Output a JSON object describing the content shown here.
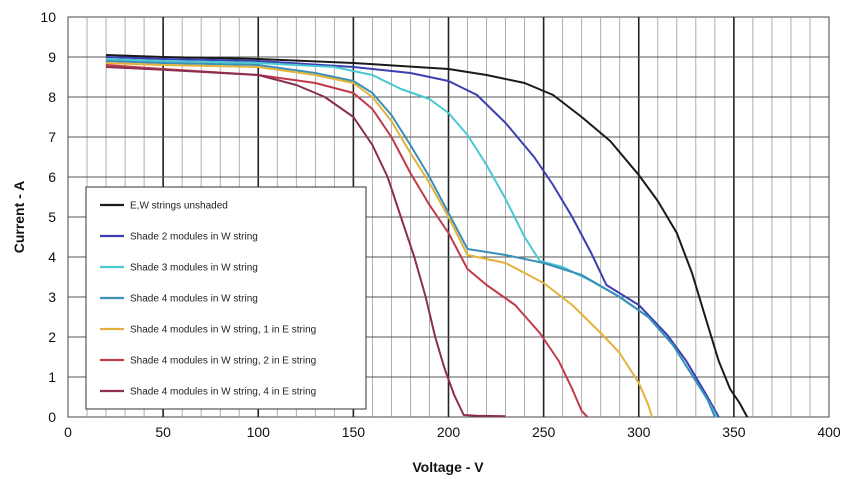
{
  "chart_data": {
    "type": "line",
    "title": "",
    "xlabel": "Voltage - V",
    "ylabel": "Current - A",
    "xlim": [
      0,
      400
    ],
    "ylim": [
      0,
      10
    ],
    "x_ticks": [
      0,
      50,
      100,
      150,
      200,
      250,
      300,
      350,
      400
    ],
    "y_ticks": [
      0,
      1,
      2,
      3,
      4,
      5,
      6,
      7,
      8,
      9,
      10
    ],
    "grid": true,
    "legend_position": "left-center",
    "series": [
      {
        "name": "E,W strings unshaded",
        "color": "#1a1a1a",
        "points": [
          [
            20,
            9.05
          ],
          [
            50,
            9.0
          ],
          [
            100,
            8.95
          ],
          [
            150,
            8.85
          ],
          [
            200,
            8.7
          ],
          [
            220,
            8.55
          ],
          [
            240,
            8.35
          ],
          [
            255,
            8.05
          ],
          [
            270,
            7.5
          ],
          [
            285,
            6.9
          ],
          [
            300,
            6.05
          ],
          [
            310,
            5.4
          ],
          [
            320,
            4.6
          ],
          [
            328,
            3.6
          ],
          [
            335,
            2.5
          ],
          [
            342,
            1.4
          ],
          [
            348,
            0.7
          ],
          [
            353,
            0.35
          ],
          [
            357,
            0.0
          ]
        ]
      },
      {
        "name": "Shade 2 modules in W string",
        "color": "#3b3fb0",
        "points": [
          [
            20,
            9.0
          ],
          [
            50,
            8.95
          ],
          [
            100,
            8.9
          ],
          [
            150,
            8.75
          ],
          [
            180,
            8.6
          ],
          [
            200,
            8.4
          ],
          [
            215,
            8.05
          ],
          [
            230,
            7.35
          ],
          [
            245,
            6.5
          ],
          [
            255,
            5.8
          ],
          [
            265,
            5.0
          ],
          [
            275,
            4.1
          ],
          [
            283,
            3.3
          ],
          [
            300,
            2.8
          ],
          [
            315,
            2.05
          ],
          [
            325,
            1.4
          ],
          [
            335,
            0.6
          ],
          [
            342,
            0.0
          ]
        ]
      },
      {
        "name": "Shade 3 modules in W string",
        "color": "#48c8d0",
        "points": [
          [
            20,
            8.95
          ],
          [
            50,
            8.9
          ],
          [
            100,
            8.85
          ],
          [
            140,
            8.75
          ],
          [
            160,
            8.55
          ],
          [
            175,
            8.2
          ],
          [
            190,
            7.95
          ],
          [
            200,
            7.6
          ],
          [
            210,
            7.05
          ],
          [
            220,
            6.3
          ],
          [
            230,
            5.45
          ],
          [
            240,
            4.5
          ],
          [
            248,
            3.9
          ],
          [
            260,
            3.75
          ],
          [
            275,
            3.4
          ],
          [
            290,
            3.0
          ],
          [
            305,
            2.5
          ],
          [
            318,
            1.8
          ],
          [
            328,
            1.05
          ],
          [
            336,
            0.45
          ],
          [
            341,
            0.0
          ]
        ]
      },
      {
        "name": "Shade 4 modules in W string",
        "color": "#3a8fb8",
        "points": [
          [
            20,
            8.9
          ],
          [
            50,
            8.85
          ],
          [
            100,
            8.8
          ],
          [
            130,
            8.6
          ],
          [
            150,
            8.4
          ],
          [
            160,
            8.1
          ],
          [
            170,
            7.55
          ],
          [
            180,
            6.8
          ],
          [
            190,
            6.0
          ],
          [
            200,
            5.1
          ],
          [
            210,
            4.2
          ],
          [
            230,
            4.05
          ],
          [
            250,
            3.85
          ],
          [
            270,
            3.55
          ],
          [
            290,
            3.0
          ],
          [
            305,
            2.5
          ],
          [
            318,
            1.8
          ],
          [
            328,
            1.05
          ],
          [
            336,
            0.45
          ],
          [
            340,
            0.0
          ]
        ]
      },
      {
        "name": "Shade 4 modules in W string, 1 in E string",
        "color": "#e3b23a",
        "points": [
          [
            20,
            8.85
          ],
          [
            50,
            8.8
          ],
          [
            100,
            8.75
          ],
          [
            130,
            8.55
          ],
          [
            150,
            8.35
          ],
          [
            160,
            8.0
          ],
          [
            170,
            7.4
          ],
          [
            180,
            6.6
          ],
          [
            190,
            5.85
          ],
          [
            200,
            5.0
          ],
          [
            210,
            4.05
          ],
          [
            230,
            3.85
          ],
          [
            250,
            3.35
          ],
          [
            265,
            2.8
          ],
          [
            280,
            2.1
          ],
          [
            290,
            1.6
          ],
          [
            300,
            0.85
          ],
          [
            305,
            0.3
          ],
          [
            307,
            0.0
          ]
        ]
      },
      {
        "name": "Shade 4 modules in W string, 2 in E string",
        "color": "#c23a4a",
        "points": [
          [
            20,
            8.8
          ],
          [
            50,
            8.7
          ],
          [
            100,
            8.55
          ],
          [
            130,
            8.35
          ],
          [
            150,
            8.1
          ],
          [
            160,
            7.7
          ],
          [
            170,
            7.0
          ],
          [
            180,
            6.1
          ],
          [
            190,
            5.3
          ],
          [
            200,
            4.6
          ],
          [
            210,
            3.7
          ],
          [
            220,
            3.3
          ],
          [
            235,
            2.8
          ],
          [
            248,
            2.1
          ],
          [
            258,
            1.4
          ],
          [
            265,
            0.7
          ],
          [
            270,
            0.15
          ],
          [
            273,
            0.0
          ]
        ]
      },
      {
        "name": "Shade 4 modules in W string, 4 in E string",
        "color": "#8a2f52",
        "points": [
          [
            20,
            8.75
          ],
          [
            50,
            8.68
          ],
          [
            100,
            8.55
          ],
          [
            120,
            8.3
          ],
          [
            135,
            8.0
          ],
          [
            150,
            7.5
          ],
          [
            160,
            6.8
          ],
          [
            168,
            6.0
          ],
          [
            175,
            5.0
          ],
          [
            182,
            4.0
          ],
          [
            188,
            3.0
          ],
          [
            193,
            2.0
          ],
          [
            198,
            1.2
          ],
          [
            203,
            0.55
          ],
          [
            208,
            0.05
          ],
          [
            215,
            0.03
          ],
          [
            230,
            0.02
          ]
        ]
      }
    ]
  }
}
